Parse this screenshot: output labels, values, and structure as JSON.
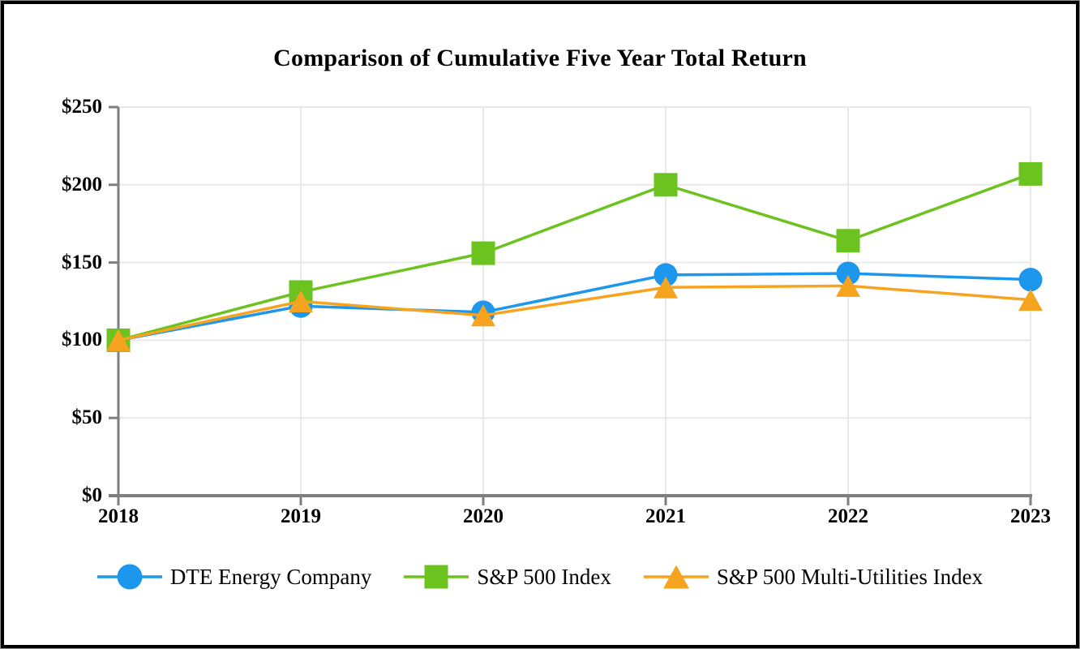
{
  "page": {
    "title": "Comparison of Cumulative Five Year Total Return"
  },
  "chart_data": {
    "type": "line",
    "title": "Comparison of Cumulative Five Year Total Return",
    "xlabel": "",
    "ylabel": "",
    "categories": [
      "2018",
      "2019",
      "2020",
      "2021",
      "2022",
      "2023"
    ],
    "series": [
      {
        "name": "DTE Energy Company",
        "marker": "circle",
        "color": "#1D96EE",
        "values": [
          100,
          122,
          118,
          142,
          143,
          139
        ]
      },
      {
        "name": "S&P 500 Index",
        "marker": "square",
        "color": "#6CC21E",
        "values": [
          100,
          131,
          156,
          200,
          164,
          207
        ]
      },
      {
        "name": "S&P 500 Multi-Utilities Index",
        "marker": "triangle",
        "color": "#F6A41F",
        "values": [
          100,
          125,
          116,
          134,
          135,
          126
        ]
      }
    ],
    "y_ticks": [
      0,
      50,
      100,
      150,
      200,
      250
    ],
    "y_tick_labels": [
      "$0",
      "$50",
      "$100",
      "$150",
      "$200",
      "$250"
    ],
    "ylim": [
      0,
      250
    ],
    "grid": true,
    "legend_position": "bottom"
  },
  "colors": {
    "axis": "#7F7F7F",
    "grid": "#E9E9E9",
    "text": "#000000",
    "frame": "#000000",
    "background": "#FFFFFF"
  }
}
